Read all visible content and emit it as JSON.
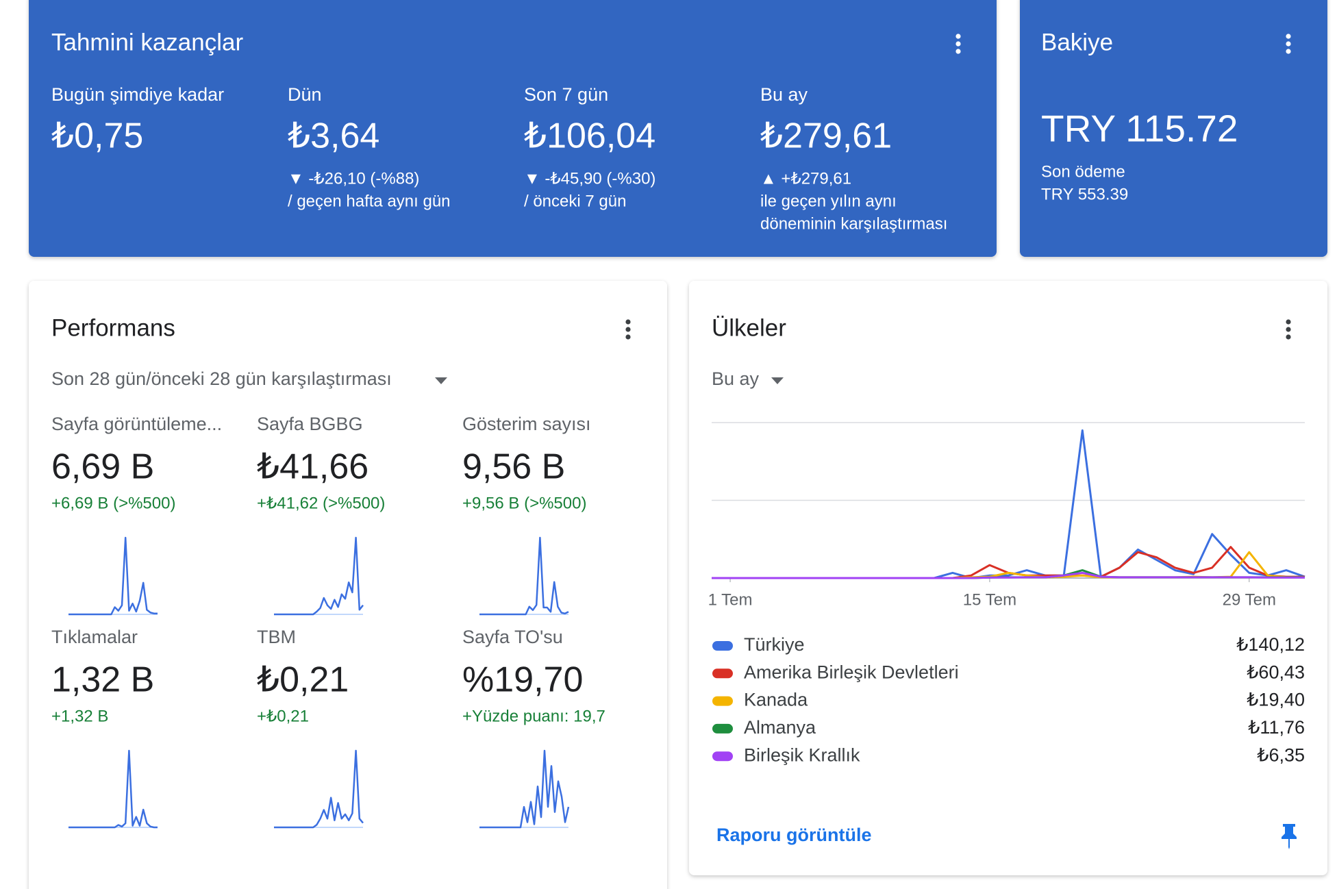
{
  "kazanclar": {
    "title": "Tahmini kazançlar",
    "items": [
      {
        "label": "Bugün şimdiye kadar",
        "value": "₺0,75",
        "notes": []
      },
      {
        "label": "Dün",
        "value": "₺3,64",
        "notes": [
          "▼ -₺26,10 (-%88)",
          "/ geçen hafta aynı gün"
        ]
      },
      {
        "label": "Son 7 gün",
        "value": "₺106,04",
        "notes": [
          "▼ -₺45,90 (-%30)",
          "/ önceki 7 gün"
        ]
      },
      {
        "label": "Bu ay",
        "value": "₺279,61",
        "notes": [
          "▲ +₺279,61",
          "ile geçen yılın aynı",
          "döneminin karşılaştırması"
        ]
      }
    ]
  },
  "bakiye": {
    "title": "Bakiye",
    "value": "TRY 115.72",
    "last_label": "Son ödeme",
    "last_value": "TRY 553.39"
  },
  "performans": {
    "title": "Performans",
    "period": "Son 28 gün/önceki 28 gün karşılaştırması",
    "metrics": [
      {
        "label": "Sayfa görüntüleme...",
        "value": "6,69 B",
        "change": "+6,69 B (>%500)",
        "spark": [
          0,
          0,
          0,
          0,
          0,
          0,
          0,
          0,
          0,
          0,
          0,
          0,
          0,
          0.8,
          0.4,
          1,
          8.5,
          0.4,
          1.2,
          0.3,
          1.5,
          3.5,
          0.5,
          0.2,
          0.1,
          0.1
        ]
      },
      {
        "label": "Sayfa BGBG",
        "value": "₺41,66",
        "change": "+₺41,62 (>%500)",
        "spark": [
          0,
          0,
          0,
          0,
          0,
          0,
          0,
          0,
          0,
          0,
          0,
          0,
          0.3,
          0.7,
          1.8,
          1,
          0.6,
          1.6,
          0.8,
          2.2,
          1.7,
          3.5,
          2.4,
          8.4,
          0.5,
          1
        ]
      },
      {
        "label": "Gösterim sayısı",
        "value": "9,56 B",
        "change": "+9,56 B (>%500)",
        "spark": [
          0,
          0,
          0,
          0,
          0,
          0,
          0,
          0,
          0,
          0,
          0,
          0,
          0,
          0,
          0.9,
          0.5,
          1.1,
          9,
          0.8,
          0.8,
          0.3,
          3.8,
          0.9,
          0.2,
          0.1,
          0.3
        ]
      },
      {
        "label": "Tıklamalar",
        "value": "1,32 B",
        "change": "+1,32 B",
        "spark": [
          0,
          0,
          0,
          0,
          0,
          0,
          0,
          0,
          0,
          0,
          0,
          0,
          0,
          0,
          0.3,
          0.1,
          0.5,
          9.5,
          0.2,
          1.3,
          0.2,
          2.2,
          0.5,
          0.1,
          0,
          0
        ]
      },
      {
        "label": "TBM",
        "value": "₺0,21",
        "change": "+₺0,21",
        "spark": [
          0,
          0,
          0,
          0,
          0,
          0,
          0,
          0,
          0,
          0,
          0,
          0,
          0.3,
          1,
          2,
          1,
          3.4,
          0.8,
          2.8,
          1,
          1.5,
          0.8,
          1.6,
          8.8,
          1,
          0.5
        ]
      },
      {
        "label": "Sayfa TO'su",
        "value": "%19,70",
        "change": "+Yüzde puanı: 19,7",
        "spark": [
          0,
          0,
          0,
          0,
          0,
          0,
          0,
          0,
          0,
          0,
          0,
          0,
          0,
          2,
          0.5,
          2.5,
          0.3,
          4,
          1,
          7.5,
          2,
          6,
          1.5,
          4.5,
          3,
          0.5,
          2
        ]
      }
    ]
  },
  "ulkeler": {
    "title": "Ülkeler",
    "period": "Bu ay",
    "link": "Raporu görüntüle"
  },
  "chart_data": {
    "type": "line",
    "x": [
      0,
      1,
      2,
      3,
      4,
      5,
      6,
      7,
      8,
      9,
      10,
      11,
      12,
      13,
      14,
      15,
      16,
      17,
      18,
      19,
      20,
      21,
      22,
      23,
      24,
      25,
      26,
      27,
      28,
      29,
      30,
      31,
      32
    ],
    "xlim": [
      0,
      32
    ],
    "xticks": [
      {
        "value": 1,
        "label": "1 Tem"
      },
      {
        "value": 15,
        "label": "15 Tem"
      },
      {
        "value": 29,
        "label": "29 Tem"
      }
    ],
    "ylim": [
      0,
      60
    ],
    "yticks": [
      0,
      30,
      60
    ],
    "grid": true,
    "series": [
      {
        "name": "Türkiye",
        "color": "#3b6fe0",
        "total": "₺140,12",
        "values": [
          0,
          0,
          0,
          0,
          0,
          0,
          0,
          0,
          0,
          0,
          0,
          0,
          0,
          2,
          0,
          1,
          1,
          3,
          1,
          1,
          57,
          0.5,
          4,
          11,
          7,
          3,
          1.5,
          17,
          9,
          2,
          1,
          3,
          0.5
        ]
      },
      {
        "name": "Amerika Birleşik Devletleri",
        "color": "#d93025",
        "total": "₺60,43",
        "values": [
          0,
          0,
          0,
          0,
          0,
          0,
          0,
          0,
          0,
          0,
          0,
          0,
          0,
          0,
          1,
          5,
          2,
          1,
          1,
          1,
          1,
          0.5,
          4,
          10,
          8,
          4,
          2,
          4,
          12,
          4,
          1,
          0.5,
          0.5
        ]
      },
      {
        "name": "Kanada",
        "color": "#f4b400",
        "total": "₺19,40",
        "values": [
          0,
          0,
          0,
          0,
          0,
          0,
          0,
          0,
          0,
          0,
          0,
          0,
          0,
          0,
          0.3,
          0.5,
          2,
          1,
          0.3,
          0.5,
          1,
          0.3,
          0.3,
          0.3,
          0.3,
          0.3,
          0.5,
          0.3,
          0.5,
          10,
          1,
          0.3,
          0.3
        ]
      },
      {
        "name": "Almanya",
        "color": "#1e8e3e",
        "total": "₺11,76",
        "values": [
          0,
          0,
          0,
          0,
          0,
          0,
          0,
          0,
          0,
          0,
          0,
          0,
          0,
          0,
          0,
          0.2,
          0.3,
          0.3,
          0.3,
          1,
          3,
          0.5,
          0.3,
          0.3,
          0.3,
          0.3,
          0.3,
          0.3,
          0.3,
          0.3,
          0.3,
          0.3,
          0.3
        ]
      },
      {
        "name": "Birleşik Krallık",
        "color": "#a142f4",
        "total": "₺6,35",
        "values": [
          0,
          0,
          0,
          0,
          0,
          0,
          0,
          0,
          0,
          0,
          0,
          0,
          0,
          0,
          0,
          0.2,
          0.2,
          0.3,
          0.3,
          1,
          2,
          0.5,
          0.3,
          0.3,
          0.3,
          0.3,
          0.3,
          0.3,
          0.3,
          0.3,
          0.2,
          0.2,
          0.2
        ]
      }
    ]
  }
}
